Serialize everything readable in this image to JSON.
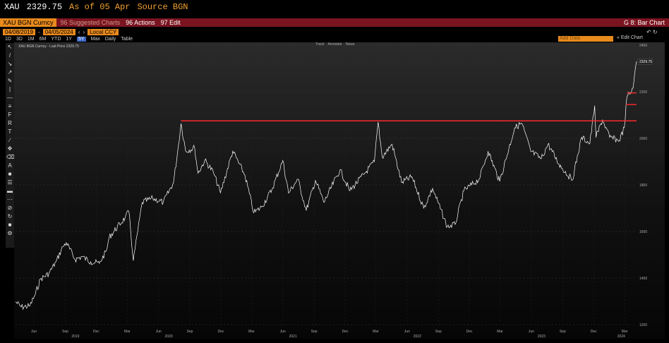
{
  "security_bar": {
    "ticker": "XAU",
    "price": "2329.75",
    "as_of": "As of 05 Apr",
    "source": "Source BGN"
  },
  "function_bar": {
    "security": "XAU BGN Curncy",
    "suggested": "96 Suggested Charts",
    "actions": "96 Actions",
    "edit": "97 Edit",
    "title": "G 8: Bar Chart"
  },
  "date_bar": {
    "start": "04/08/2019",
    "end": "04/05/2024",
    "currency": "Local CCY"
  },
  "periods": [
    {
      "label": "1D"
    },
    {
      "label": "3D"
    },
    {
      "label": "1M"
    },
    {
      "label": "6M"
    },
    {
      "label": "YTD"
    },
    {
      "label": "1Y"
    },
    {
      "label": "5Y",
      "selected": true
    },
    {
      "label": "Max"
    },
    {
      "label": "Daily"
    }
  ],
  "table_label": "Table",
  "add_data_placeholder": "Add Data",
  "edit_chart": "Edit Chart",
  "legend": "XAU BGN Curncy - Last Price 2329.75",
  "view_tabs": [
    "Track",
    "Annotate",
    "News"
  ],
  "colors": {
    "accent": "#e98a1c",
    "band": "#7a1420",
    "line": "#ffffff",
    "reference": "#ff2a2a"
  },
  "chart_data": {
    "type": "line",
    "series": [
      {
        "values": [
          [
            "2019-04-08",
            1298
          ],
          [
            "2019-04-25",
            1276
          ],
          [
            "2019-05-20",
            1280
          ],
          [
            "2019-06-05",
            1330
          ],
          [
            "2019-06-20",
            1395
          ],
          [
            "2019-07-15",
            1420
          ],
          [
            "2019-08-05",
            1470
          ],
          [
            "2019-08-25",
            1535
          ],
          [
            "2019-09-04",
            1552
          ],
          [
            "2019-09-30",
            1480
          ],
          [
            "2019-10-20",
            1492
          ],
          [
            "2019-11-15",
            1470
          ],
          [
            "2019-12-10",
            1463
          ],
          [
            "2019-12-31",
            1517
          ],
          [
            "2020-01-08",
            1575
          ],
          [
            "2020-02-24",
            1660
          ],
          [
            "2020-03-06",
            1685
          ],
          [
            "2020-03-19",
            1475
          ],
          [
            "2020-04-14",
            1725
          ],
          [
            "2020-05-15",
            1742
          ],
          [
            "2020-06-15",
            1725
          ],
          [
            "2020-07-15",
            1810
          ],
          [
            "2020-07-27",
            1940
          ],
          [
            "2020-08-06",
            2064
          ],
          [
            "2020-08-20",
            1945
          ],
          [
            "2020-09-15",
            1960
          ],
          [
            "2020-09-25",
            1850
          ],
          [
            "2020-10-15",
            1905
          ],
          [
            "2020-11-09",
            1855
          ],
          [
            "2020-11-30",
            1765
          ],
          [
            "2021-01-05",
            1945
          ],
          [
            "2021-02-10",
            1840
          ],
          [
            "2021-03-08",
            1680
          ],
          [
            "2021-03-31",
            1705
          ],
          [
            "2021-04-30",
            1780
          ],
          [
            "2021-06-01",
            1905
          ],
          [
            "2021-06-18",
            1765
          ],
          [
            "2021-07-15",
            1825
          ],
          [
            "2021-08-09",
            1690
          ],
          [
            "2021-09-05",
            1820
          ],
          [
            "2021-09-30",
            1725
          ],
          [
            "2021-11-16",
            1865
          ],
          [
            "2021-12-15",
            1775
          ],
          [
            "2022-01-25",
            1845
          ],
          [
            "2022-02-25",
            1900
          ],
          [
            "2022-03-08",
            2070
          ],
          [
            "2022-03-20",
            1920
          ],
          [
            "2022-04-18",
            1975
          ],
          [
            "2022-05-16",
            1810
          ],
          [
            "2022-06-15",
            1835
          ],
          [
            "2022-07-20",
            1700
          ],
          [
            "2022-08-15",
            1785
          ],
          [
            "2022-09-27",
            1620
          ],
          [
            "2022-10-20",
            1630
          ],
          [
            "2022-11-15",
            1775
          ],
          [
            "2022-12-30",
            1825
          ],
          [
            "2023-01-25",
            1945
          ],
          [
            "2023-02-28",
            1815
          ],
          [
            "2023-04-13",
            2045
          ],
          [
            "2023-05-04",
            2065
          ],
          [
            "2023-05-30",
            1945
          ],
          [
            "2023-06-30",
            1912
          ],
          [
            "2023-07-20",
            1975
          ],
          [
            "2023-08-21",
            1890
          ],
          [
            "2023-09-29",
            1820
          ],
          [
            "2023-10-27",
            2005
          ],
          [
            "2023-11-20",
            1978
          ],
          [
            "2023-12-04",
            2140
          ],
          [
            "2023-12-08",
            2004
          ],
          [
            "2023-12-27",
            2080
          ],
          [
            "2024-01-17",
            2005
          ],
          [
            "2024-02-14",
            1990
          ],
          [
            "2024-02-29",
            2045
          ],
          [
            "2024-03-08",
            2180
          ],
          [
            "2024-03-21",
            2200
          ],
          [
            "2024-03-28",
            2240
          ],
          [
            "2024-04-05",
            2330
          ]
        ]
      }
    ],
    "reference_lines": [
      {
        "y": 2075,
        "x_start": "2020-08-06",
        "x_end": "2024-04-05"
      },
      {
        "y": 2195,
        "x_start": "2024-03-08",
        "x_end": "2024-04-05"
      },
      {
        "y": 2145,
        "x_start": "2024-03-05",
        "x_end": "2024-04-05"
      }
    ],
    "last_price_label": "2329.75",
    "ylim": [
      1200,
      2400
    ],
    "y_ticks": [
      "1200",
      "1400",
      "1600",
      "1800",
      "2000",
      "2200",
      "2400"
    ],
    "x_month_ticks": [
      "Jun",
      "Sep",
      "Dec",
      "Mar",
      "Jun",
      "Sep",
      "Dec",
      "Mar",
      "Jun",
      "Sep",
      "Dec",
      "Mar",
      "Jun",
      "Sep",
      "Dec",
      "Mar",
      "Jun",
      "Sep",
      "Dec",
      "Mar"
    ],
    "x_year_ticks": [
      "2019",
      "2020",
      "2021",
      "2022",
      "2023",
      "2024"
    ],
    "grid": true
  }
}
